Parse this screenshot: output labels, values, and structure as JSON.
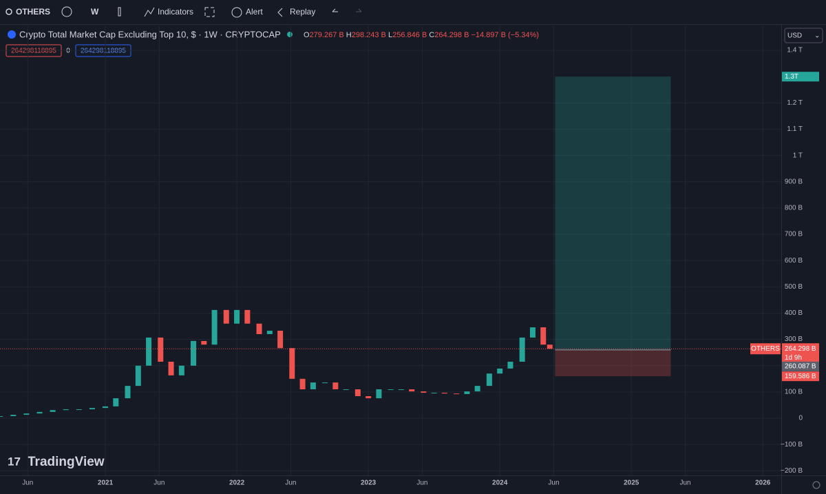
{
  "toolbar": {
    "symbol": "OTHERS",
    "interval": "W",
    "indicators": "Indicators",
    "alert": "Alert",
    "replay": "Replay"
  },
  "legend": {
    "title": "Crypto Total Market Cap Excluding Top 10, $ · 1W · CRYPTOCAP",
    "ohlc": [
      {
        "key": "O",
        "text": "279.267 B"
      },
      {
        "key": "H",
        "text": "298.243 B"
      },
      {
        "key": "L",
        "text": "256.846 B"
      },
      {
        "key": "C",
        "text": "264.298 B"
      }
    ],
    "change": "−14.897 B (−5.34%)",
    "sell": "264298118895",
    "spread": "0",
    "buy": "264298118895"
  },
  "currency": "USD",
  "brand": "TradingView",
  "chart_data": {
    "type": "candlestick",
    "x": [
      2020.2,
      2020.3,
      2020.4,
      2020.5,
      2020.6,
      2020.7,
      2020.8,
      2020.9,
      2021.0,
      2021.08,
      2021.17,
      2021.25,
      2021.33,
      2021.42,
      2021.5,
      2021.58,
      2021.67,
      2021.75,
      2021.83,
      2021.92,
      2022.0,
      2022.08,
      2022.17,
      2022.25,
      2022.33,
      2022.42,
      2022.5,
      2022.58,
      2022.67,
      2022.75,
      2022.83,
      2022.92,
      2023.0,
      2023.08,
      2023.17,
      2023.25,
      2023.33,
      2023.42,
      2023.5,
      2023.58,
      2023.67,
      2023.75,
      2023.83,
      2023.92,
      2024.0,
      2024.08,
      2024.17,
      2024.25,
      2024.33,
      2024.38
    ],
    "series": [
      {
        "name": "OTHERS",
        "up_color": "#26a69a",
        "down_color": "#ef5350",
        "values": [
          8,
          13,
          18,
          24,
          31,
          34,
          34,
          39,
          45,
          76,
          123,
          200,
          307,
          215,
          163,
          200,
          294,
          280,
          412,
          360,
          412,
          360,
          320,
          333,
          267,
          150,
          110,
          136,
          136,
          110,
          110,
          84,
          76,
          110,
          110,
          110,
          102,
          97,
          97,
          94,
          92,
          102,
          123,
          170,
          189,
          215,
          307,
          346,
          280,
          264.298
        ]
      }
    ],
    "xlim": [
      2020.199,
      2026.14
    ],
    "xticks": [
      {
        "value": 2020.41,
        "label": "Jun"
      },
      2021,
      {
        "value": 2021.41,
        "label": "Jun"
      },
      2022,
      {
        "value": 2022.41,
        "label": "Jun"
      },
      2023,
      {
        "value": 2023.41,
        "label": "Jun"
      },
      2024,
      {
        "value": 2024.41,
        "label": "Jun"
      },
      2025,
      {
        "value": 2025.41,
        "label": "Jun"
      },
      2026
    ],
    "ylim": [
      -217.6,
      1492
    ],
    "yticks": [
      {
        "value": -200,
        "label": "−200 B"
      },
      {
        "value": -100,
        "label": "−100 B"
      },
      0,
      {
        "value": 100,
        "label": "100 B"
      },
      {
        "value": 200,
        "label": "200 B"
      },
      {
        "value": 300,
        "label": "300 B"
      },
      {
        "value": 400,
        "label": "400 B"
      },
      {
        "value": 500,
        "label": "500 B"
      },
      {
        "value": 600,
        "label": "600 B"
      },
      {
        "value": 700,
        "label": "700 B"
      },
      {
        "value": 800,
        "label": "800 B"
      },
      {
        "value": 900,
        "label": "900 B"
      },
      {
        "value": 1000,
        "label": "1 T"
      },
      {
        "value": 1100,
        "label": "1.1 T"
      },
      {
        "value": 1200,
        "label": "1.2 T"
      },
      {
        "value": 1400,
        "label": "1.4 T"
      }
    ],
    "grid": true,
    "price_line": {
      "value": 264.298,
      "label": "264.298 B",
      "countdown": "1d 9h",
      "symbol": "OTHERS"
    },
    "position": {
      "x": [
        2024.42,
        2025.3
      ],
      "entry": 260.087,
      "entry_label": "260.087 B",
      "target": 1300,
      "target_label": "1.3T",
      "stop": 159.586,
      "stop_label": "159.586 B"
    }
  }
}
